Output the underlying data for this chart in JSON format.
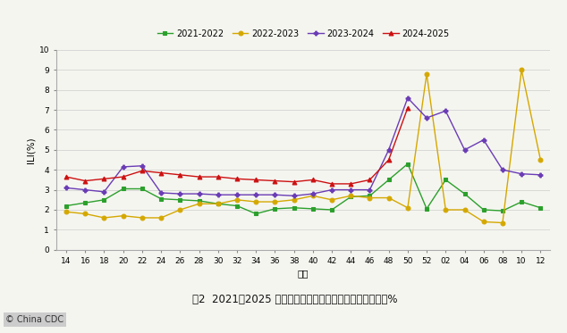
{
  "x_labels": [
    "14",
    "16",
    "18",
    "20",
    "22",
    "24",
    "26",
    "28",
    "30",
    "32",
    "34",
    "36",
    "38",
    "40",
    "42",
    "44",
    "46",
    "48",
    "50",
    "52",
    "02",
    "04",
    "06",
    "08",
    "10",
    "12"
  ],
  "series": {
    "2021-2022": {
      "color": "#2ca02c",
      "marker": "s",
      "values": [
        2.2,
        2.35,
        2.5,
        3.05,
        3.05,
        2.55,
        2.5,
        2.45,
        2.3,
        2.2,
        1.8,
        2.05,
        2.1,
        2.05,
        2.0,
        2.65,
        2.7,
        3.5,
        4.3,
        2.05,
        3.5,
        2.8,
        2.0,
        1.95,
        2.4,
        2.1
      ]
    },
    "2022-2023": {
      "color": "#d4a800",
      "marker": "o",
      "values": [
        1.9,
        1.8,
        1.6,
        1.7,
        1.6,
        1.6,
        2.0,
        2.3,
        2.3,
        2.5,
        2.4,
        2.4,
        2.5,
        2.7,
        2.5,
        2.7,
        2.6,
        2.6,
        2.1,
        8.8,
        2.0,
        2.0,
        1.4,
        1.35,
        9.0,
        4.5
      ]
    },
    "2023-2024": {
      "color": "#6a3cb5",
      "marker": "P",
      "values": [
        3.1,
        3.0,
        2.9,
        4.15,
        4.2,
        2.85,
        2.8,
        2.8,
        2.75,
        2.75,
        2.75,
        2.75,
        2.7,
        2.8,
        3.0,
        3.0,
        3.0,
        5.0,
        7.6,
        6.6,
        6.95,
        5.0,
        5.5,
        4.0,
        3.8,
        3.75
      ]
    },
    "2024-2025": {
      "color": "#cc1111",
      "marker": "^",
      "values": [
        3.65,
        3.45,
        3.55,
        3.65,
        3.95,
        3.85,
        3.75,
        3.65,
        3.65,
        3.55,
        3.5,
        3.45,
        3.4,
        3.5,
        3.3,
        3.3,
        3.5,
        4.5,
        7.1,
        null,
        null,
        null,
        null,
        null,
        null,
        null
      ]
    }
  },
  "ylabel": "ILI(%)",
  "xlabel": "周次",
  "ylim": [
    0,
    10
  ],
  "yticks": [
    0,
    1,
    2,
    3,
    4,
    5,
    6,
    7,
    8,
    9,
    10
  ],
  "caption": "图2  2021－2025 年度北方省份哨点医院报告的流感样病例%",
  "watermark": "© China CDC",
  "bg_color": "#f5f5f0",
  "legend_order": [
    "2021-2022",
    "2022-2023",
    "2023-2024",
    "2024-2025"
  ]
}
